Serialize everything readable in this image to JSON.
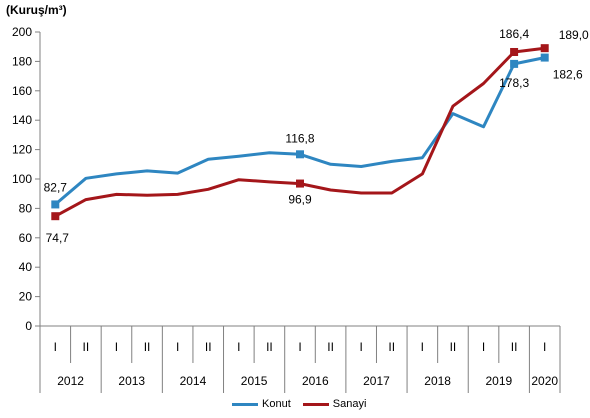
{
  "chart_data": {
    "type": "line",
    "unit_label": "(Kuruş/m³)",
    "x": [
      "I",
      "II",
      "I",
      "II",
      "I",
      "II",
      "I",
      "II",
      "I",
      "II",
      "I",
      "II",
      "I",
      "II",
      "I",
      "II",
      "I"
    ],
    "years": [
      "2012",
      "2013",
      "2014",
      "2015",
      "2016",
      "2017",
      "2018",
      "2019",
      "2020"
    ],
    "ylim": [
      0,
      200
    ],
    "yticks": [
      0,
      20,
      40,
      60,
      80,
      100,
      120,
      140,
      160,
      180,
      200
    ],
    "series": [
      {
        "name": "Konut",
        "color": "#2e86c1",
        "values": [
          82.7,
          100.5,
          103.5,
          105.5,
          104.0,
          113.5,
          115.5,
          117.8,
          116.8,
          110.0,
          108.5,
          112.0,
          114.5,
          144.5,
          135.5,
          178.3,
          182.6
        ]
      },
      {
        "name": "Sanayi",
        "color": "#a4161a",
        "values": [
          74.7,
          86.0,
          89.5,
          89.0,
          89.5,
          93.0,
          99.5,
          98.0,
          96.9,
          92.5,
          90.5,
          90.5,
          103.5,
          149.5,
          165.0,
          186.4,
          189.0
        ]
      }
    ],
    "annotations": [
      {
        "series": 0,
        "index": 0,
        "text": "82,7"
      },
      {
        "series": 1,
        "index": 0,
        "text": "74,7"
      },
      {
        "series": 0,
        "index": 8,
        "text": "116,8"
      },
      {
        "series": 1,
        "index": 8,
        "text": "96,9"
      },
      {
        "series": 1,
        "index": 15,
        "text": "186,4"
      },
      {
        "series": 0,
        "index": 15,
        "text": "178,3"
      },
      {
        "series": 1,
        "index": 16,
        "text": "189,0"
      },
      {
        "series": 0,
        "index": 16,
        "text": "182,6"
      }
    ],
    "markers": [
      0,
      8,
      15,
      16
    ]
  }
}
